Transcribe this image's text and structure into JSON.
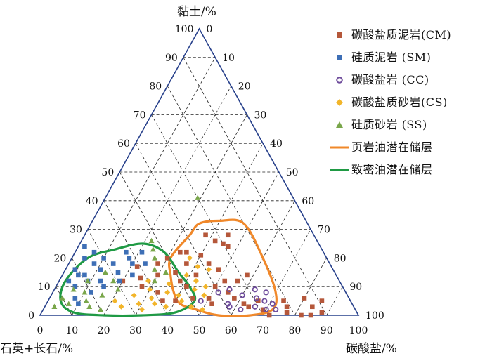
{
  "chart_data": {
    "type": "ternary-scatter",
    "axes": {
      "clay": {
        "title": "黏土/%",
        "ticks": [
          0,
          10,
          20,
          30,
          40,
          50,
          60,
          70,
          80,
          90,
          100
        ]
      },
      "quartz_feldspar": {
        "title": "石英+长石/%",
        "ticks": [
          100,
          90,
          80,
          70,
          60,
          50,
          40,
          30,
          20,
          10,
          0
        ]
      },
      "carbonate": {
        "title": "碳酸盐/%",
        "ticks": [
          0,
          10,
          20,
          30,
          40,
          50,
          60,
          70,
          80,
          90,
          100
        ]
      }
    },
    "grid": true,
    "legend_position": "right",
    "series": [
      {
        "name": "碳酸盐质泥岩(CM)",
        "marker": "square",
        "color": "#b5573a",
        "points": [
          {
            "carb": 38,
            "clay": 28
          },
          {
            "carb": 33,
            "clay": 22
          },
          {
            "carb": 35,
            "clay": 22
          },
          {
            "carb": 40,
            "clay": 21
          },
          {
            "carb": 30,
            "clay": 20
          },
          {
            "carb": 28,
            "clay": 18
          },
          {
            "carb": 42,
            "clay": 26
          },
          {
            "carb": 45,
            "clay": 28
          },
          {
            "carb": 45,
            "clay": 25
          },
          {
            "carb": 47,
            "clay": 24
          },
          {
            "carb": 44,
            "clay": 18
          },
          {
            "carb": 48,
            "clay": 16
          },
          {
            "carb": 52,
            "clay": 12
          },
          {
            "carb": 50,
            "clay": 10
          },
          {
            "carb": 55,
            "clay": 8
          },
          {
            "carb": 58,
            "clay": 6
          },
          {
            "carb": 35,
            "clay": 15
          },
          {
            "carb": 38,
            "clay": 12
          },
          {
            "carb": 41,
            "clay": 10
          },
          {
            "carb": 25,
            "clay": 13
          },
          {
            "carb": 30,
            "clay": 14
          },
          {
            "carb": 20,
            "clay": 12
          },
          {
            "carb": 27,
            "clay": 10
          },
          {
            "carb": 33,
            "clay": 8
          },
          {
            "carb": 45,
            "clay": 6
          },
          {
            "carb": 40,
            "clay": 5
          },
          {
            "carb": 50,
            "clay": 6
          },
          {
            "carb": 52,
            "clay": 4
          },
          {
            "carb": 62,
            "clay": 4
          },
          {
            "carb": 64,
            "clay": 3
          },
          {
            "carb": 66,
            "clay": 5
          },
          {
            "carb": 69,
            "clay": 2
          },
          {
            "carb": 74,
            "clay": 5
          },
          {
            "carb": 76,
            "clay": 3
          },
          {
            "carb": 72,
            "clay": 0
          },
          {
            "carb": 77,
            "clay": 1
          },
          {
            "carb": 82,
            "clay": 0
          },
          {
            "carb": 80,
            "clay": 6
          },
          {
            "carb": 84,
            "clay": 3
          },
          {
            "carb": 85,
            "clay": 0
          },
          {
            "carb": 88,
            "clay": 1
          },
          {
            "carb": 86,
            "clay": 5
          },
          {
            "carb": 37,
            "clay": 18
          },
          {
            "carb": 42,
            "clay": 14
          },
          {
            "carb": 36,
            "clay": 5
          },
          {
            "carb": 22,
            "clay": 17
          },
          {
            "carb": 56,
            "clay": 12
          },
          {
            "carb": 58,
            "clay": 14
          }
        ]
      },
      {
        "name": "硅质泥岩 (SM)",
        "marker": "square",
        "color": "#3e6fb6",
        "points": [
          {
            "carb": 2,
            "clay": 24
          },
          {
            "carb": 4,
            "clay": 20
          },
          {
            "carb": 3,
            "clay": 16
          },
          {
            "carb": 5,
            "clay": 14
          },
          {
            "carb": 3,
            "clay": 12
          },
          {
            "carb": 6,
            "clay": 10
          },
          {
            "carb": 8,
            "clay": 18
          },
          {
            "carb": 7,
            "clay": 14
          },
          {
            "carb": 9,
            "clay": 12
          },
          {
            "carb": 10,
            "clay": 20
          },
          {
            "carb": 11,
            "clay": 16
          },
          {
            "carb": 13,
            "clay": 12
          },
          {
            "carb": 14,
            "clay": 18
          },
          {
            "carb": 16,
            "clay": 22
          },
          {
            "carb": 18,
            "clay": 20
          },
          {
            "carb": 17,
            "clay": 15
          },
          {
            "carb": 19,
            "clay": 12
          },
          {
            "carb": 20,
            "clay": 18
          },
          {
            "carb": 22,
            "clay": 14
          },
          {
            "carb": 12,
            "clay": 8
          },
          {
            "carb": 15,
            "clay": 10
          },
          {
            "carb": 8,
            "clay": 6
          },
          {
            "carb": 10,
            "clay": 4
          },
          {
            "carb": 21,
            "clay": 22
          },
          {
            "carb": 24,
            "clay": 18
          },
          {
            "carb": 6,
            "clay": 22
          }
        ]
      },
      {
        "name": "碳酸盐岩 (CC)",
        "marker": "circle",
        "color": "#6f4d9c",
        "points": [
          {
            "carb": 48,
            "clay": 5
          },
          {
            "carb": 52,
            "clay": 8
          },
          {
            "carb": 55,
            "clay": 9
          },
          {
            "carb": 57,
            "clay": 4
          },
          {
            "carb": 60,
            "clay": 7
          },
          {
            "carb": 62,
            "clay": 2
          },
          {
            "carb": 63,
            "clay": 9
          },
          {
            "carb": 65,
            "clay": 6
          },
          {
            "carb": 66,
            "clay": 3
          },
          {
            "carb": 68,
            "clay": 5
          },
          {
            "carb": 70,
            "clay": 2
          },
          {
            "carb": 67,
            "clay": 8
          },
          {
            "carb": 71,
            "clay": 4
          },
          {
            "carb": 73,
            "clay": 2
          },
          {
            "carb": 58,
            "clay": 3
          }
        ]
      },
      {
        "name": "碳酸盐质砂岩(CS)",
        "marker": "diamond",
        "color": "#f2b52a",
        "points": [
          {
            "carb": 28,
            "clay": 12
          },
          {
            "carb": 30,
            "clay": 9
          },
          {
            "carb": 32,
            "clay": 6
          },
          {
            "carb": 34,
            "clay": 4
          },
          {
            "carb": 36,
            "clay": 8
          },
          {
            "carb": 38,
            "clay": 3
          },
          {
            "carb": 40,
            "clay": 7
          },
          {
            "carb": 42,
            "clay": 5
          },
          {
            "carb": 44,
            "clay": 9
          },
          {
            "carb": 46,
            "clay": 3
          },
          {
            "carb": 48,
            "clay": 7
          },
          {
            "carb": 50,
            "clay": 2
          },
          {
            "carb": 26,
            "clay": 7
          },
          {
            "carb": 24,
            "clay": 3
          },
          {
            "carb": 31,
            "clay": 2
          },
          {
            "carb": 35,
            "clay": 11
          },
          {
            "carb": 39,
            "clay": 14
          },
          {
            "carb": 43,
            "clay": 12
          },
          {
            "carb": 47,
            "clay": 10
          },
          {
            "carb": 45,
            "clay": 16
          },
          {
            "carb": 41,
            "clay": 17
          },
          {
            "carb": 37,
            "clay": 20
          },
          {
            "carb": 21,
            "clay": 5
          },
          {
            "carb": 29,
            "clay": 4
          }
        ]
      },
      {
        "name": "硅质砂岩 (SS)",
        "marker": "triangle",
        "color": "#79a64a",
        "points": [
          {
            "carb": 4,
            "clay": 6
          },
          {
            "carb": 7,
            "clay": 4
          },
          {
            "carb": 10,
            "clay": 8
          },
          {
            "carb": 12,
            "clay": 5
          },
          {
            "carb": 14,
            "clay": 3
          },
          {
            "carb": 16,
            "clay": 7
          },
          {
            "carb": 9,
            "clay": 12
          },
          {
            "carb": 13,
            "clay": 15
          },
          {
            "carb": 17,
            "clay": 12
          },
          {
            "carb": 20,
            "clay": 9
          },
          {
            "carb": 18,
            "clay": 2
          },
          {
            "carb": 22,
            "clay": 26
          },
          {
            "carb": 24,
            "clay": 23
          },
          {
            "carb": 26,
            "clay": 20
          },
          {
            "carb": 28,
            "clay": 16
          },
          {
            "carb": 30,
            "clay": 12
          },
          {
            "carb": 32,
            "clay": 15
          },
          {
            "carb": 29,
            "clay": 41
          },
          {
            "carb": 3,
            "clay": 3
          },
          {
            "carb": 6,
            "clay": 9
          }
        ]
      }
    ],
    "envelopes": [
      {
        "name": "页岩油潜在储层",
        "color": "#f0882a",
        "polygon": [
          {
            "carb": 33,
            "clay": 28
          },
          {
            "carb": 34,
            "clay": 32
          },
          {
            "carb": 40,
            "clay": 33
          },
          {
            "carb": 48,
            "clay": 32
          },
          {
            "carb": 60,
            "clay": 20
          },
          {
            "carb": 70,
            "clay": 8
          },
          {
            "carb": 72,
            "clay": 2
          },
          {
            "carb": 66,
            "clay": 0
          },
          {
            "carb": 56,
            "clay": 0
          },
          {
            "carb": 48,
            "clay": 2
          },
          {
            "carb": 42,
            "clay": 4
          },
          {
            "carb": 38,
            "clay": 8
          },
          {
            "carb": 34,
            "clay": 14
          },
          {
            "carb": 31,
            "clay": 20
          }
        ]
      },
      {
        "name": "致密油潜在储层",
        "color": "#1f9a44",
        "polygon": [
          {
            "carb": 5,
            "clay": 20
          },
          {
            "carb": 12,
            "clay": 23
          },
          {
            "carb": 20,
            "clay": 25
          },
          {
            "carb": 28,
            "clay": 22
          },
          {
            "carb": 36,
            "clay": 15
          },
          {
            "carb": 42,
            "clay": 10
          },
          {
            "carb": 46,
            "clay": 5
          },
          {
            "carb": 42,
            "clay": 1
          },
          {
            "carb": 32,
            "clay": 0
          },
          {
            "carb": 20,
            "clay": 0
          },
          {
            "carb": 10,
            "clay": 1
          },
          {
            "carb": 4,
            "clay": 5
          },
          {
            "carb": 2,
            "clay": 12
          }
        ]
      }
    ]
  }
}
